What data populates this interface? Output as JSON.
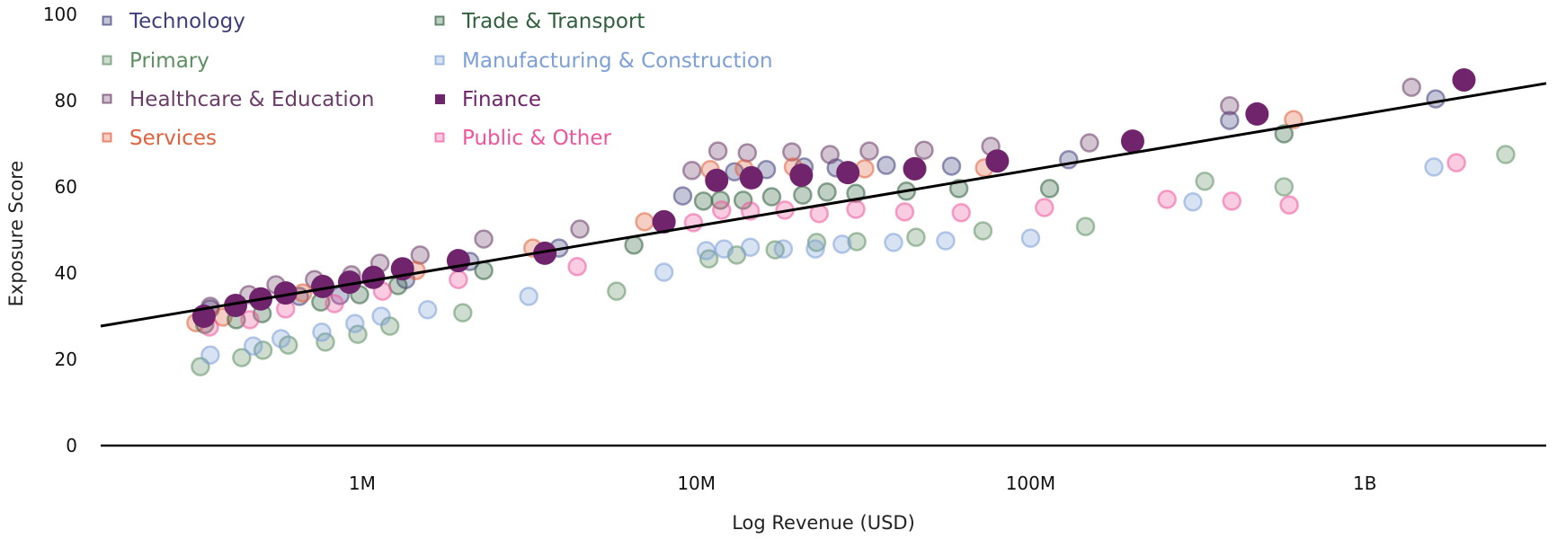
{
  "chart_data": {
    "type": "scatter",
    "title": "",
    "xlabel": "Log Revenue (USD)",
    "ylabel": "Exposure Score",
    "x_scale": "log",
    "xlim": [
      165000,
      3490000000
    ],
    "ylim": [
      0,
      100
    ],
    "x_ticks": [
      {
        "value": 1000000,
        "label": "1M"
      },
      {
        "value": 10000000,
        "label": "10M"
      },
      {
        "value": 100000000,
        "label": "100M"
      },
      {
        "value": 1000000000,
        "label": "1B"
      }
    ],
    "y_ticks": [
      {
        "value": 0,
        "label": "0"
      },
      {
        "value": 20,
        "label": "20"
      },
      {
        "value": 40,
        "label": "40"
      },
      {
        "value": 60,
        "label": "60"
      },
      {
        "value": 80,
        "label": "80"
      },
      {
        "value": 100,
        "label": "100"
      }
    ],
    "grid": false,
    "legend_position": "top-left",
    "trendline": {
      "x": [
        165000,
        3490000000
      ],
      "y": [
        27.7,
        84.0
      ],
      "color": "#000000"
    },
    "series": [
      {
        "name": "Technology",
        "color": "#3f3f7e",
        "filled": false,
        "points": [
          [
            351000,
            31.7
          ],
          [
            649000,
            34.6
          ],
          [
            858000,
            34.8
          ],
          [
            1350000,
            38.5
          ],
          [
            2100000,
            42.7
          ],
          [
            3880000,
            45.8
          ],
          [
            9100000,
            57.9
          ],
          [
            13000000,
            63.5
          ],
          [
            16200000,
            64.0
          ],
          [
            21000000,
            64.6
          ],
          [
            26200000,
            64.4
          ],
          [
            37000000,
            65.0
          ],
          [
            58000000,
            64.8
          ],
          [
            130000000,
            66.3
          ],
          [
            394000000,
            75.4
          ],
          [
            1630000000,
            80.4
          ]
        ]
      },
      {
        "name": "Primary",
        "color": "#5e8f62",
        "filled": false,
        "points": [
          [
            328000,
            18.3
          ],
          [
            436000,
            20.4
          ],
          [
            505000,
            22.1
          ],
          [
            601000,
            23.3
          ],
          [
            776000,
            24.0
          ],
          [
            970000,
            25.8
          ],
          [
            1210000,
            27.7
          ],
          [
            2000000,
            30.8
          ],
          [
            5770000,
            35.8
          ],
          [
            10900000,
            43.3
          ],
          [
            13200000,
            44.2
          ],
          [
            17200000,
            45.4
          ],
          [
            22900000,
            47.1
          ],
          [
            30200000,
            47.3
          ],
          [
            45400000,
            48.3
          ],
          [
            72000000,
            49.8
          ],
          [
            146000000,
            50.8
          ],
          [
            332000000,
            61.3
          ],
          [
            573000000,
            60.0
          ],
          [
            2640000000,
            67.5
          ]
        ]
      },
      {
        "name": "Healthcare & Education",
        "color": "#6a3d68",
        "filled": false,
        "points": [
          [
            351000,
            32.3
          ],
          [
            458000,
            35.0
          ],
          [
            552000,
            37.3
          ],
          [
            720000,
            38.5
          ],
          [
            929000,
            39.6
          ],
          [
            1130000,
            42.3
          ],
          [
            1490000,
            44.2
          ],
          [
            2310000,
            47.9
          ],
          [
            4480000,
            50.2
          ],
          [
            9700000,
            63.8
          ],
          [
            11600000,
            68.3
          ],
          [
            14200000,
            67.9
          ],
          [
            19300000,
            68.1
          ],
          [
            25100000,
            67.5
          ],
          [
            32900000,
            68.3
          ],
          [
            48000000,
            68.5
          ],
          [
            76000000,
            69.4
          ],
          [
            150000000,
            70.2
          ],
          [
            394000000,
            78.8
          ],
          [
            1380000000,
            83.1
          ]
        ]
      },
      {
        "name": "Services",
        "color": "#e2603c",
        "filled": false,
        "points": [
          [
            318000,
            28.5
          ],
          [
            383000,
            29.8
          ],
          [
            664000,
            35.4
          ],
          [
            1450000,
            40.6
          ],
          [
            3240000,
            45.8
          ],
          [
            7000000,
            51.9
          ],
          [
            11000000,
            64.0
          ],
          [
            13900000,
            64.2
          ],
          [
            19500000,
            64.6
          ],
          [
            31900000,
            64.2
          ],
          [
            72800000,
            64.4
          ],
          [
            612000000,
            75.6
          ]
        ]
      },
      {
        "name": "Trade & Transport",
        "color": "#2f5f3c",
        "filled": false,
        "points": [
          [
            338000,
            28.1
          ],
          [
            420000,
            29.2
          ],
          [
            502000,
            30.6
          ],
          [
            752000,
            33.3
          ],
          [
            982000,
            35.0
          ],
          [
            1280000,
            37.1
          ],
          [
            2310000,
            40.6
          ],
          [
            6500000,
            46.5
          ],
          [
            10500000,
            56.7
          ],
          [
            11800000,
            56.9
          ],
          [
            13800000,
            56.9
          ],
          [
            16800000,
            57.7
          ],
          [
            20800000,
            58.1
          ],
          [
            24600000,
            58.8
          ],
          [
            30000000,
            58.5
          ],
          [
            42500000,
            59.0
          ],
          [
            61000000,
            59.6
          ],
          [
            114000000,
            59.6
          ],
          [
            573000000,
            72.3
          ]
        ]
      },
      {
        "name": "Manufacturing & Construction",
        "color": "#7b9fd6",
        "filled": false,
        "points": [
          [
            351000,
            21.0
          ],
          [
            472000,
            23.1
          ],
          [
            572000,
            24.8
          ],
          [
            757000,
            26.3
          ],
          [
            951000,
            28.3
          ],
          [
            1140000,
            30.0
          ],
          [
            1570000,
            31.5
          ],
          [
            3150000,
            34.6
          ],
          [
            8000000,
            40.2
          ],
          [
            10700000,
            45.2
          ],
          [
            12100000,
            45.6
          ],
          [
            14500000,
            46.0
          ],
          [
            18200000,
            45.6
          ],
          [
            22700000,
            45.6
          ],
          [
            27300000,
            46.7
          ],
          [
            38900000,
            47.1
          ],
          [
            55700000,
            47.5
          ],
          [
            100000000,
            48.1
          ],
          [
            306000000,
            56.5
          ],
          [
            1610000000,
            64.6
          ]
        ]
      },
      {
        "name": "Public & Other",
        "color": "#f0559c",
        "filled": false,
        "points": [
          [
            349000,
            27.5
          ],
          [
            461000,
            29.2
          ],
          [
            590000,
            31.7
          ],
          [
            826000,
            32.9
          ],
          [
            1150000,
            35.8
          ],
          [
            1940000,
            38.5
          ],
          [
            4400000,
            41.5
          ],
          [
            9800000,
            51.7
          ],
          [
            11900000,
            54.6
          ],
          [
            14500000,
            54.4
          ],
          [
            18400000,
            54.6
          ],
          [
            23300000,
            53.8
          ],
          [
            30000000,
            54.8
          ],
          [
            42000000,
            54.2
          ],
          [
            62000000,
            54.0
          ],
          [
            110000000,
            55.2
          ],
          [
            256000000,
            57.1
          ],
          [
            400000000,
            56.7
          ],
          [
            594000000,
            55.8
          ],
          [
            1880000000,
            65.6
          ]
        ]
      },
      {
        "name": "Finance",
        "color": "#6f246b",
        "filled": true,
        "points": [
          [
            336000,
            30.0
          ],
          [
            418000,
            32.5
          ],
          [
            497000,
            34.0
          ],
          [
            590000,
            35.4
          ],
          [
            762000,
            36.9
          ],
          [
            917000,
            37.9
          ],
          [
            1080000,
            39.0
          ],
          [
            1320000,
            41.0
          ],
          [
            1940000,
            42.9
          ],
          [
            3520000,
            44.6
          ],
          [
            8000000,
            51.9
          ],
          [
            11500000,
            61.5
          ],
          [
            14600000,
            62.1
          ],
          [
            20600000,
            62.7
          ],
          [
            28400000,
            63.3
          ],
          [
            45000000,
            64.2
          ],
          [
            79500000,
            66.0
          ],
          [
            202000000,
            70.6
          ],
          [
            476000000,
            76.9
          ],
          [
            1980000000,
            84.8
          ]
        ]
      }
    ]
  }
}
